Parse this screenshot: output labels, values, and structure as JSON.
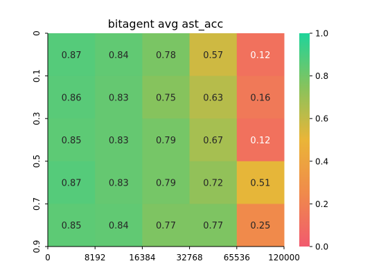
{
  "chart_data": {
    "type": "heatmap",
    "title": "bitagent avg ast_acc",
    "xlabel": "",
    "ylabel": "",
    "x_tick_labels": [
      "0",
      "8192",
      "16384",
      "32768",
      "65536",
      "120000"
    ],
    "y_tick_labels": [
      "0",
      "0.1",
      "0.3",
      "0.5",
      "0.7",
      "0.9"
    ],
    "values": [
      [
        0.87,
        0.84,
        0.78,
        0.57,
        0.12
      ],
      [
        0.86,
        0.83,
        0.75,
        0.63,
        0.16
      ],
      [
        0.85,
        0.83,
        0.79,
        0.67,
        0.12
      ],
      [
        0.87,
        0.83,
        0.79,
        0.72,
        0.51
      ],
      [
        0.85,
        0.84,
        0.77,
        0.77,
        0.25
      ]
    ],
    "value_labels": [
      [
        "0.87",
        "0.84",
        "0.78",
        "0.57",
        "0.12"
      ],
      [
        "0.86",
        "0.83",
        "0.75",
        "0.63",
        "0.16"
      ],
      [
        "0.85",
        "0.83",
        "0.79",
        "0.67",
        "0.12"
      ],
      [
        "0.87",
        "0.83",
        "0.79",
        "0.72",
        "0.51"
      ],
      [
        "0.85",
        "0.84",
        "0.77",
        "0.77",
        "0.25"
      ]
    ],
    "colorbar": {
      "vmin": 0.0,
      "vmax": 1.0,
      "tick_labels": [
        "0.0",
        "0.2",
        "0.4",
        "0.6",
        "0.8",
        "1.0"
      ],
      "colors": [
        "#f15a6e",
        "#f08a4b",
        "#eab538",
        "#86c35d",
        "#1fd49a"
      ]
    },
    "grid": false,
    "legend": "colorbar-right"
  }
}
